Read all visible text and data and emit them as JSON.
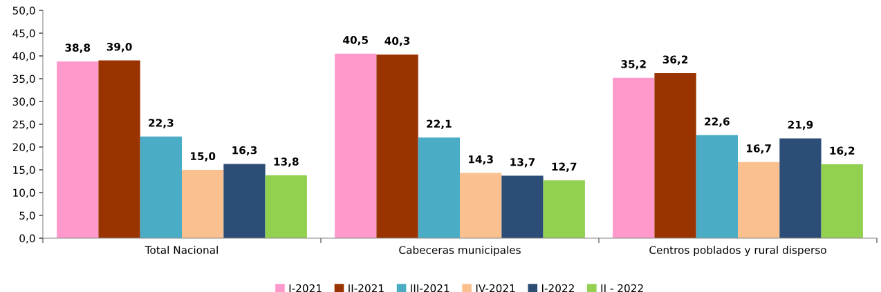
{
  "chart_data": {
    "type": "bar",
    "categories": [
      "Total Nacional",
      "Cabeceras municipales",
      "Centros poblados y rural disperso"
    ],
    "series": [
      {
        "name": "I-2021",
        "color": "#ff99cc",
        "values": [
          38.8,
          40.5,
          35.2
        ],
        "value_labels": [
          "38,8",
          "40,5",
          "35,2"
        ]
      },
      {
        "name": "II-2021",
        "color": "#993300",
        "values": [
          39.0,
          40.3,
          36.2
        ],
        "value_labels": [
          "39,0",
          "40,3",
          "36,2"
        ]
      },
      {
        "name": "III-2021",
        "color": "#4bacc6",
        "values": [
          22.3,
          22.1,
          22.6
        ],
        "value_labels": [
          "22,3",
          "22,1",
          "22,6"
        ]
      },
      {
        "name": "IV-2021",
        "color": "#fac090",
        "values": [
          15.0,
          14.3,
          16.7
        ],
        "value_labels": [
          "15,0",
          "14,3",
          "16,7"
        ]
      },
      {
        "name": "I-2022",
        "color": "#2c4d75",
        "values": [
          16.3,
          13.7,
          21.9
        ],
        "value_labels": [
          "16,3",
          "13,7",
          "21,9"
        ]
      },
      {
        "name": "II - 2022",
        "color": "#92d050",
        "values": [
          13.8,
          12.7,
          16.2
        ],
        "value_labels": [
          "13,8",
          "12,7",
          "16,2"
        ]
      }
    ],
    "ylim": [
      0,
      50
    ],
    "yticks": [
      {
        "value": 0,
        "label": "0,0"
      },
      {
        "value": 5,
        "label": "5,0"
      },
      {
        "value": 10,
        "label": "10,0"
      },
      {
        "value": 15,
        "label": "15,0"
      },
      {
        "value": 20,
        "label": "20,0"
      },
      {
        "value": 25,
        "label": "25,0"
      },
      {
        "value": 30,
        "label": "30,0"
      },
      {
        "value": 35,
        "label": "35,0"
      },
      {
        "value": 40,
        "label": "40,0"
      },
      {
        "value": 45,
        "label": "45,0"
      },
      {
        "value": 50,
        "label": "50,0"
      }
    ],
    "grid": false,
    "legend": "bottom"
  }
}
